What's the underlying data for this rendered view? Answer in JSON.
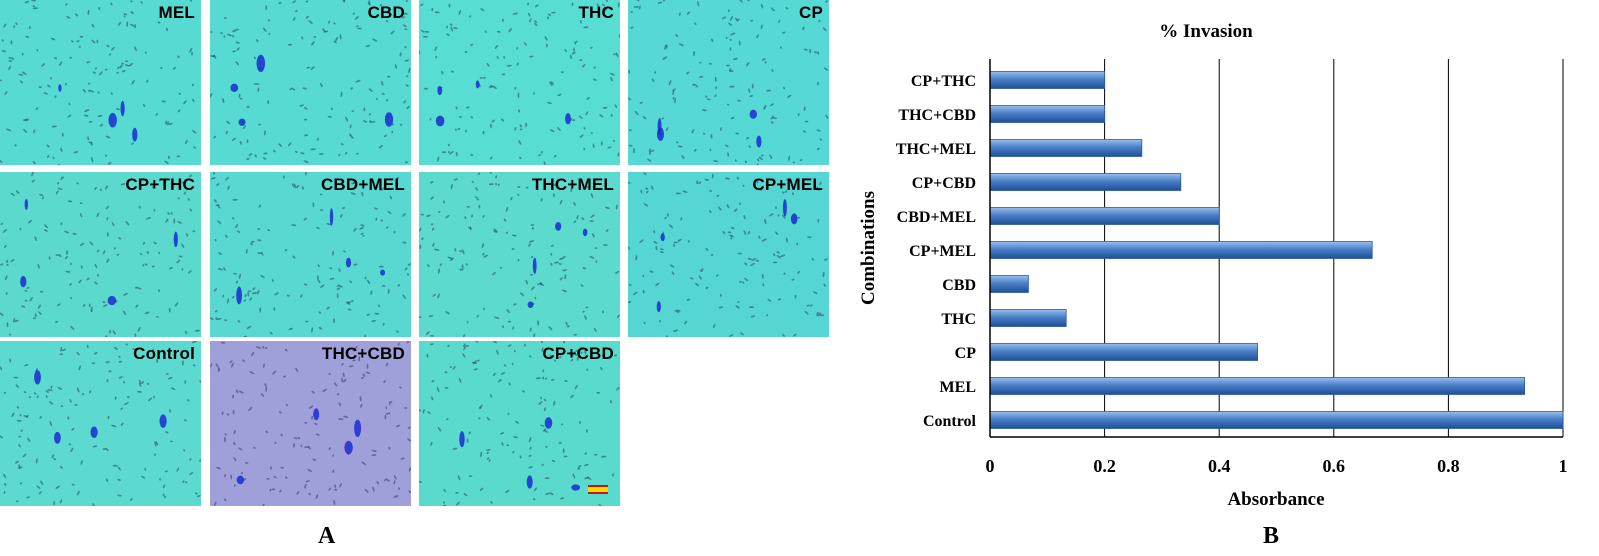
{
  "panel_a": {
    "label": "A",
    "panels": [
      {
        "title": "MEL",
        "bg": "#4fd8cf"
      },
      {
        "title": "CBD",
        "bg": "#4fd8d0"
      },
      {
        "title": "THC",
        "bg": "#52dccf"
      },
      {
        "title": "CP",
        "bg": "#4fd6d3"
      },
      {
        "title": "CP+THC",
        "bg": "#56d6c8"
      },
      {
        "title": "CBD+MEL",
        "bg": "#52d4cd"
      },
      {
        "title": "THC+MEL",
        "bg": "#57d8c8"
      },
      {
        "title": "CP+MEL",
        "bg": "#4ed2cf"
      },
      {
        "title": "Control",
        "bg": "#58d8cc"
      },
      {
        "title": "THC+CBD",
        "bg": "#9a9ed8"
      },
      {
        "title": "CP+CBD",
        "bg": "#55d8c6"
      }
    ]
  },
  "panel_b": {
    "label": "B"
  },
  "chart_data": {
    "type": "bar",
    "orientation": "horizontal",
    "title": "% Invasion",
    "xlabel": "Absorbance",
    "ylabel": "Combinations",
    "xlim": [
      0,
      1
    ],
    "xticks": [
      "0",
      "0.2",
      "0.4",
      "0.6",
      "0.8",
      "1"
    ],
    "grid": "vertical",
    "categories": [
      "CP+THC",
      "THC+CBD",
      "THC+MEL",
      "CP+CBD",
      "CBD+MEL",
      "CP+MEL",
      "CBD",
      "THC",
      "CP",
      "MEL",
      "Control"
    ],
    "values": [
      0.2,
      0.2,
      0.265,
      0.333,
      0.4,
      0.667,
      0.067,
      0.133,
      0.467,
      0.933,
      1.0
    ],
    "bar_color": "#4a7fc8"
  }
}
